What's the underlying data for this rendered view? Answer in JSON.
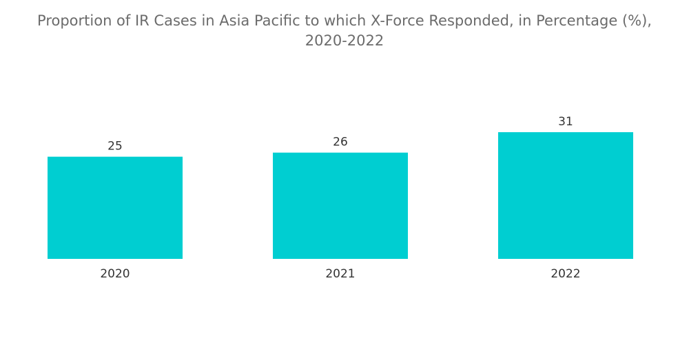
{
  "chart_data": {
    "type": "bar",
    "title_lines": [
      "Proportion of IR Cases in Asia Pacific to which X-Force Responded, in Percentage (%),",
      "2020-2022"
    ],
    "categories": [
      "2020",
      "2021",
      "2022"
    ],
    "values": [
      25,
      26,
      31
    ],
    "value_labels": [
      "25",
      "26",
      "31"
    ],
    "xlabel": "",
    "ylabel": "",
    "ylim": [
      0,
      31
    ],
    "grid": false,
    "legend": "none",
    "colors": {
      "bar": "#00CED1",
      "title": "#6b6b6b",
      "text": "#333333"
    }
  }
}
